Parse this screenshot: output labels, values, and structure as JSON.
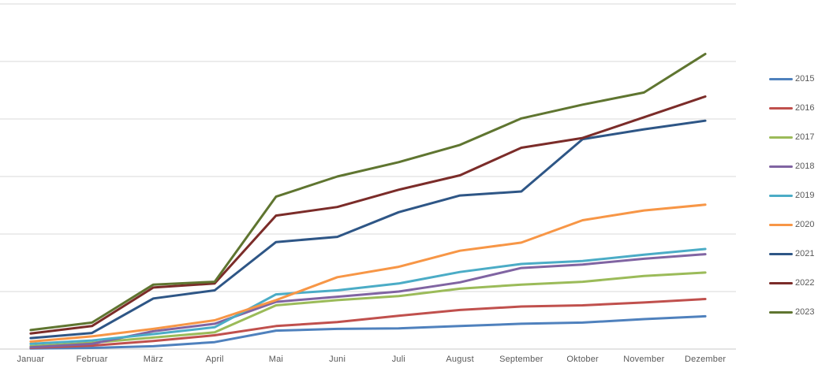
{
  "chart_data": {
    "type": "line",
    "title": "",
    "xlabel": "",
    "ylabel": "",
    "x": [
      "Januar",
      "Februar",
      "März",
      "April",
      "Mai",
      "Juni",
      "Juli",
      "August",
      "September",
      "Oktober",
      "November",
      "Dezember"
    ],
    "ylim": [
      0,
      600
    ],
    "y_gridline_interval": 100,
    "y_axis_labels_visible": false,
    "grid": "horizontal",
    "legend_position": "right",
    "gridline_color": "#D9D9D9",
    "axis_line_color": "#C9C9C9",
    "label_color": "#595959",
    "series": [
      {
        "name": "2015",
        "color": "#4F81BD",
        "values": [
          1,
          2,
          5,
          12,
          32,
          35,
          36,
          40,
          44,
          46,
          52,
          57
        ]
      },
      {
        "name": "2016",
        "color": "#C0504D",
        "values": [
          2,
          6,
          14,
          24,
          40,
          47,
          58,
          68,
          74,
          76,
          81,
          87
        ]
      },
      {
        "name": "2017",
        "color": "#9BBB59",
        "values": [
          5,
          11,
          20,
          29,
          76,
          85,
          92,
          105,
          112,
          117,
          127,
          133
        ]
      },
      {
        "name": "2018",
        "color": "#8064A2",
        "values": [
          3,
          9,
          31,
          44,
          82,
          91,
          100,
          116,
          141,
          147,
          157,
          165
        ]
      },
      {
        "name": "2019",
        "color": "#4BACC6",
        "values": [
          9,
          15,
          26,
          38,
          95,
          102,
          114,
          134,
          148,
          153,
          164,
          174
        ]
      },
      {
        "name": "2020",
        "color": "#F79646",
        "values": [
          13,
          22,
          35,
          50,
          85,
          125,
          143,
          171,
          185,
          224,
          241,
          251
        ]
      },
      {
        "name": "2021",
        "color": "#2E5686",
        "values": [
          19,
          28,
          88,
          102,
          186,
          195,
          238,
          267,
          274,
          365,
          382,
          397
        ]
      },
      {
        "name": "2022",
        "color": "#7B2C29",
        "values": [
          27,
          40,
          107,
          114,
          232,
          247,
          277,
          302,
          350,
          367,
          403,
          439
        ]
      },
      {
        "name": "2023",
        "color": "#5F7530",
        "values": [
          33,
          46,
          112,
          117,
          265,
          300,
          325,
          355,
          401,
          425,
          446,
          513
        ]
      }
    ]
  }
}
